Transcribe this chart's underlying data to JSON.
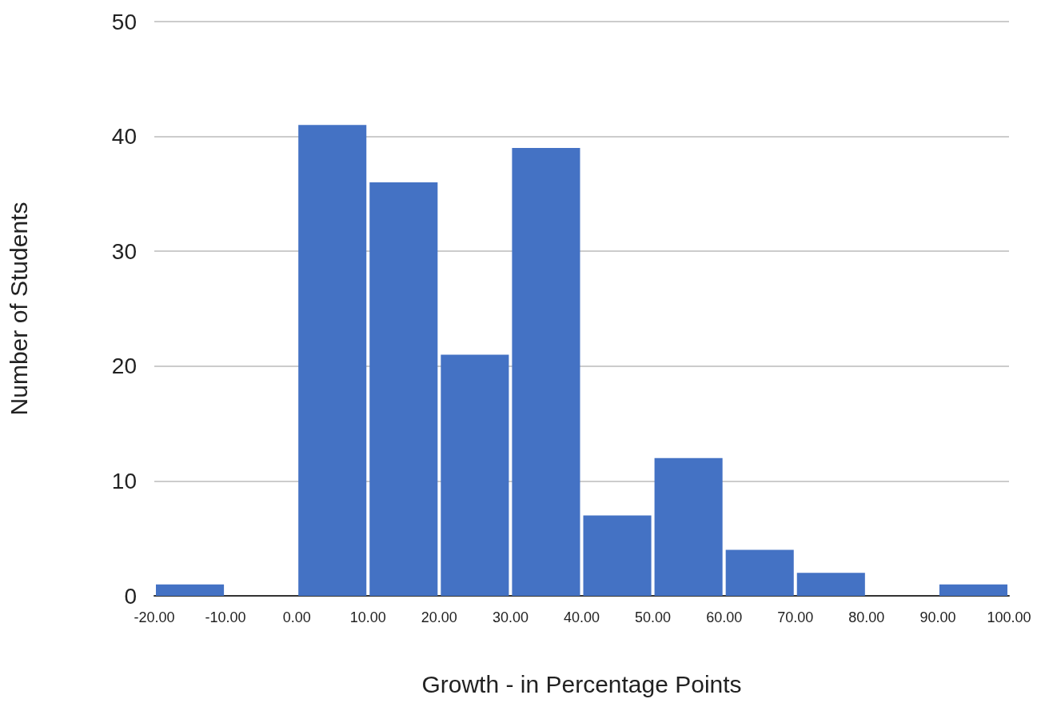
{
  "chart_data": {
    "type": "histogram",
    "xlabel": "Growth - in Percentage Points",
    "ylabel": "Number of Students",
    "bins": [
      -20,
      -10,
      0,
      10,
      20,
      30,
      40,
      50,
      60,
      70,
      80,
      90,
      100
    ],
    "values": [
      1,
      0,
      41,
      36,
      21,
      39,
      7,
      12,
      4,
      2,
      0,
      1
    ],
    "color": "#4472c4",
    "xlim": [
      -20,
      100
    ],
    "xticks": [
      {
        "value": -20,
        "label": "-20.00"
      },
      {
        "value": -10,
        "label": "-10.00"
      },
      {
        "value": 0,
        "label": "0.00"
      },
      {
        "value": 10,
        "label": "10.00"
      },
      {
        "value": 20,
        "label": "20.00"
      },
      {
        "value": 30,
        "label": "30.00"
      },
      {
        "value": 40,
        "label": "40.00"
      },
      {
        "value": 50,
        "label": "50.00"
      },
      {
        "value": 60,
        "label": "60.00"
      },
      {
        "value": 70,
        "label": "70.00"
      },
      {
        "value": 80,
        "label": "80.00"
      },
      {
        "value": 90,
        "label": "90.00"
      },
      {
        "value": 100,
        "label": "100.00"
      }
    ],
    "ylim": [
      0,
      50
    ],
    "yticks": [
      0,
      10,
      20,
      30,
      40,
      50
    ],
    "grid": "y"
  }
}
